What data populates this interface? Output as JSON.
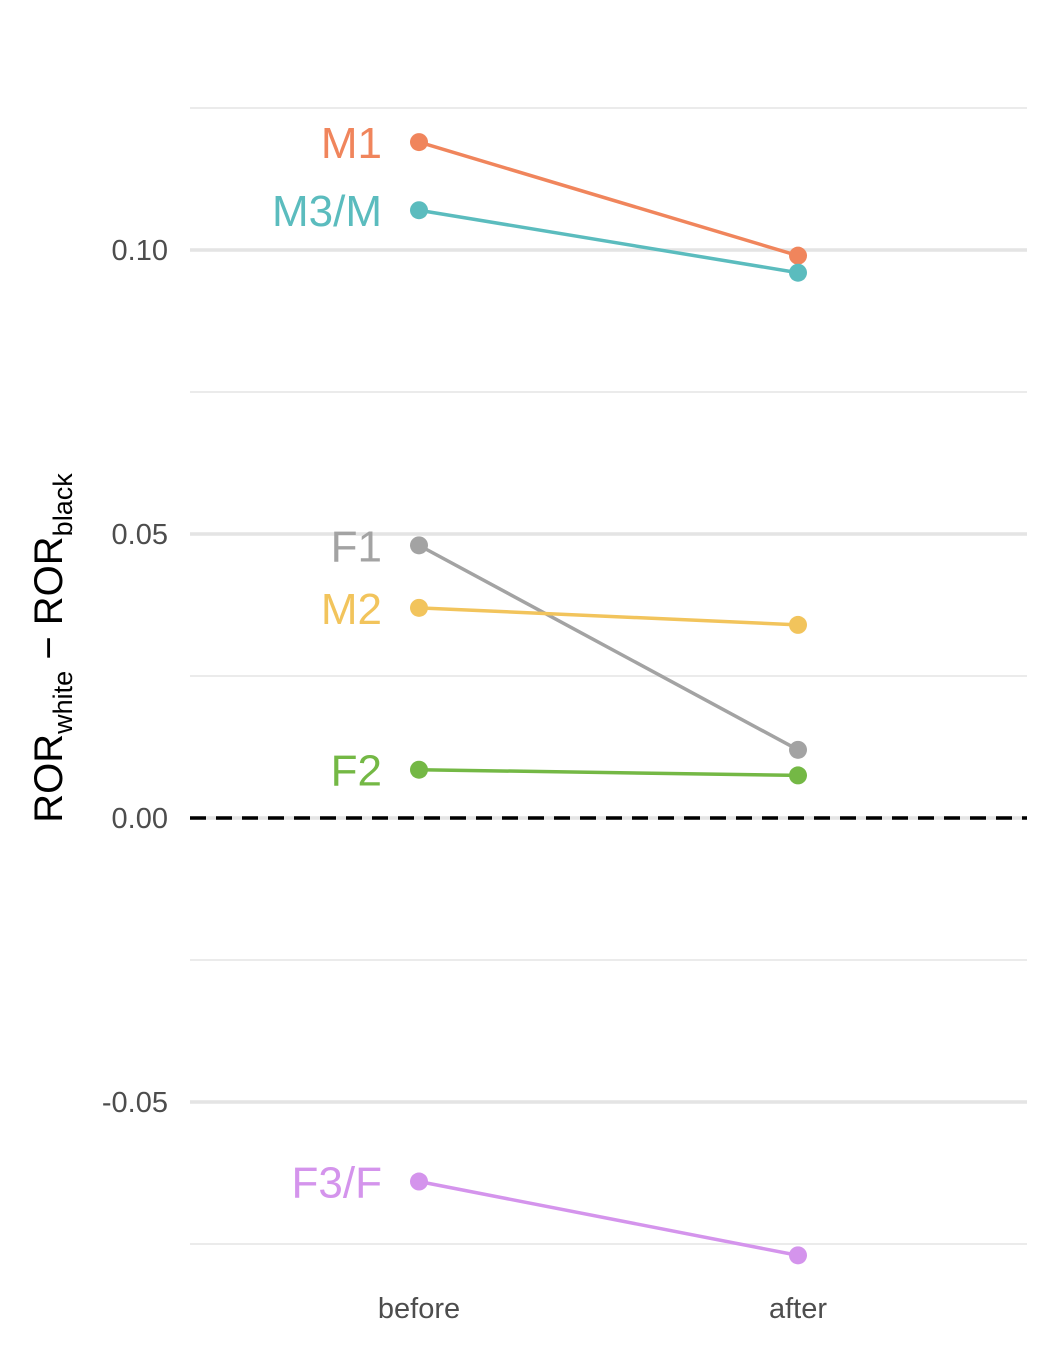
{
  "chart_data": {
    "type": "line",
    "title": "",
    "x": [
      "before",
      "after"
    ],
    "xlabel": "",
    "ylabel": {
      "main": "ROR",
      "sub_white": "white",
      "sub_black": "black",
      "minus": " − "
    },
    "ylim": [
      -0.075,
      0.125
    ],
    "yticks": [
      {
        "value": 0.1,
        "label": "0.10"
      },
      {
        "value": 0.05,
        "label": "0.05"
      },
      {
        "value": 0.0,
        "label": "0.00"
      },
      {
        "value": -0.05,
        "label": "-0.05"
      }
    ],
    "minor_gridlines": [
      0.125,
      0.075,
      0.025,
      -0.025,
      -0.075
    ],
    "reference_line": {
      "value": 0.0,
      "style": "dashed",
      "color": "#000000"
    },
    "grid": true,
    "legend": "none (direct labels at left)",
    "series": [
      {
        "name": "M1",
        "color": "#F0855C",
        "values": [
          0.119,
          0.099
        ]
      },
      {
        "name": "M3/M",
        "color": "#5BBCBE",
        "values": [
          0.107,
          0.096
        ]
      },
      {
        "name": "F1",
        "color": "#A3A3A3",
        "values": [
          0.048,
          0.012
        ]
      },
      {
        "name": "M2",
        "color": "#F2C45C",
        "values": [
          0.037,
          0.034
        ]
      },
      {
        "name": "F2",
        "color": "#74B845",
        "values": [
          0.0085,
          0.0075
        ]
      },
      {
        "name": "F3/F",
        "color": "#D494EC",
        "values": [
          -0.064,
          -0.077
        ]
      }
    ]
  }
}
